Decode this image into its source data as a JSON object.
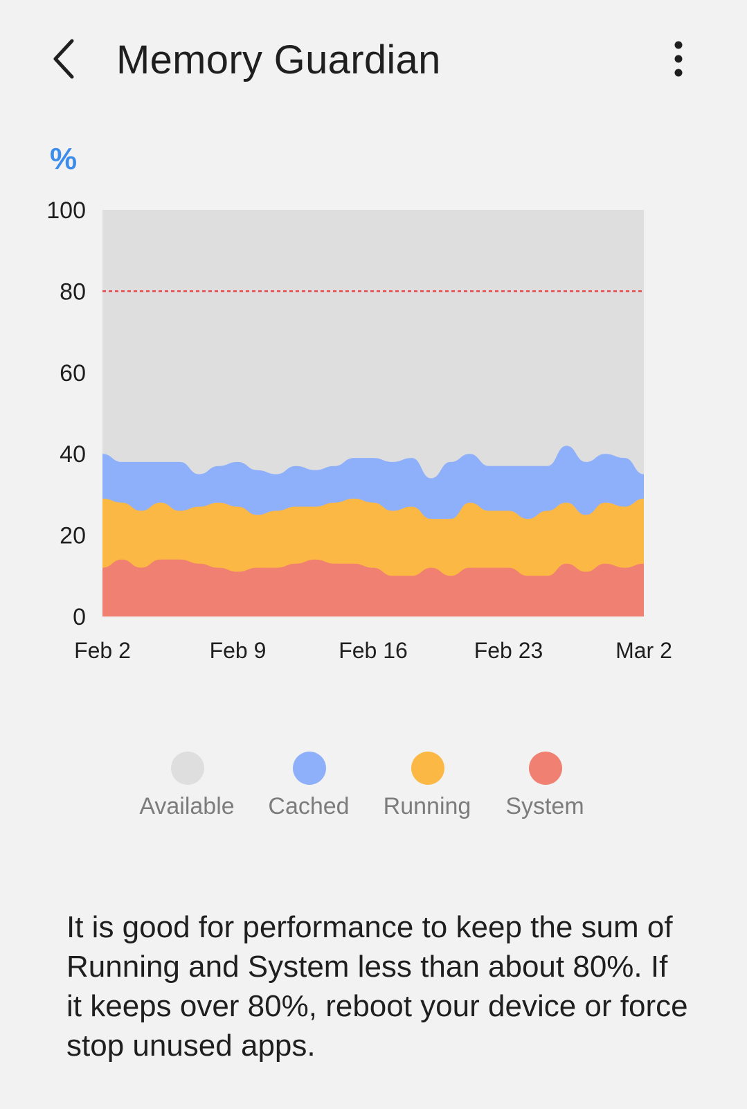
{
  "header": {
    "title": "Memory Guardian",
    "back_icon": "chevron-left-icon",
    "more_icon": "more-vert-icon"
  },
  "chart": {
    "unit_label": "%"
  },
  "chart_data": {
    "type": "area",
    "stacked": true,
    "ylim": [
      0,
      100
    ],
    "yticks": [
      "0",
      "20",
      "40",
      "60",
      "80",
      "100"
    ],
    "xtick_labels": [
      "Feb 2",
      "Feb 9",
      "Feb 16",
      "Feb 23",
      "Mar 2"
    ],
    "threshold": 80,
    "grid": false,
    "x": [
      "Feb 2",
      "Feb 3",
      "Feb 4",
      "Feb 5",
      "Feb 6",
      "Feb 7",
      "Feb 8",
      "Feb 9",
      "Feb 10",
      "Feb 11",
      "Feb 12",
      "Feb 13",
      "Feb 14",
      "Feb 15",
      "Feb 16",
      "Feb 17",
      "Feb 18",
      "Feb 19",
      "Feb 20",
      "Feb 21",
      "Feb 22",
      "Feb 23",
      "Feb 24",
      "Feb 25",
      "Feb 26",
      "Feb 27",
      "Feb 28",
      "Mar 1",
      "Mar 2"
    ],
    "series": [
      {
        "name": "System",
        "color": "#f08072",
        "values": [
          12,
          14,
          12,
          14,
          14,
          13,
          12,
          11,
          12,
          12,
          13,
          14,
          13,
          13,
          12,
          10,
          10,
          12,
          10,
          12,
          12,
          12,
          10,
          10,
          13,
          11,
          13,
          12,
          13
        ]
      },
      {
        "name": "Running",
        "color": "#fcb844",
        "values": [
          17,
          14,
          14,
          14,
          12,
          14,
          16,
          16,
          13,
          14,
          14,
          13,
          15,
          16,
          16,
          16,
          17,
          12,
          14,
          16,
          14,
          14,
          14,
          16,
          15,
          14,
          15,
          15,
          16
        ]
      },
      {
        "name": "Cached",
        "color": "#8eb0fa",
        "values": [
          11,
          10,
          12,
          10,
          12,
          8,
          9,
          11,
          11,
          9,
          10,
          9,
          9,
          10,
          11,
          12,
          12,
          10,
          14,
          12,
          11,
          11,
          13,
          11,
          14,
          13,
          12,
          12,
          6
        ]
      },
      {
        "name": "Available",
        "color": "#dedede",
        "values": [
          60,
          62,
          62,
          62,
          62,
          65,
          63,
          62,
          64,
          65,
          63,
          64,
          63,
          61,
          61,
          62,
          61,
          66,
          62,
          60,
          63,
          63,
          63,
          63,
          58,
          62,
          60,
          61,
          65
        ]
      }
    ],
    "legend_position": "bottom-center"
  },
  "legend": [
    {
      "label": "Available",
      "color": "#dedede"
    },
    {
      "label": "Cached",
      "color": "#8eb0fa"
    },
    {
      "label": "Running",
      "color": "#fcb844"
    },
    {
      "label": "System",
      "color": "#f08072"
    }
  ],
  "description": "It is good for performance to keep the sum of Running and System less than about 80%. If it keeps over 80%, reboot your device or force stop unused apps."
}
